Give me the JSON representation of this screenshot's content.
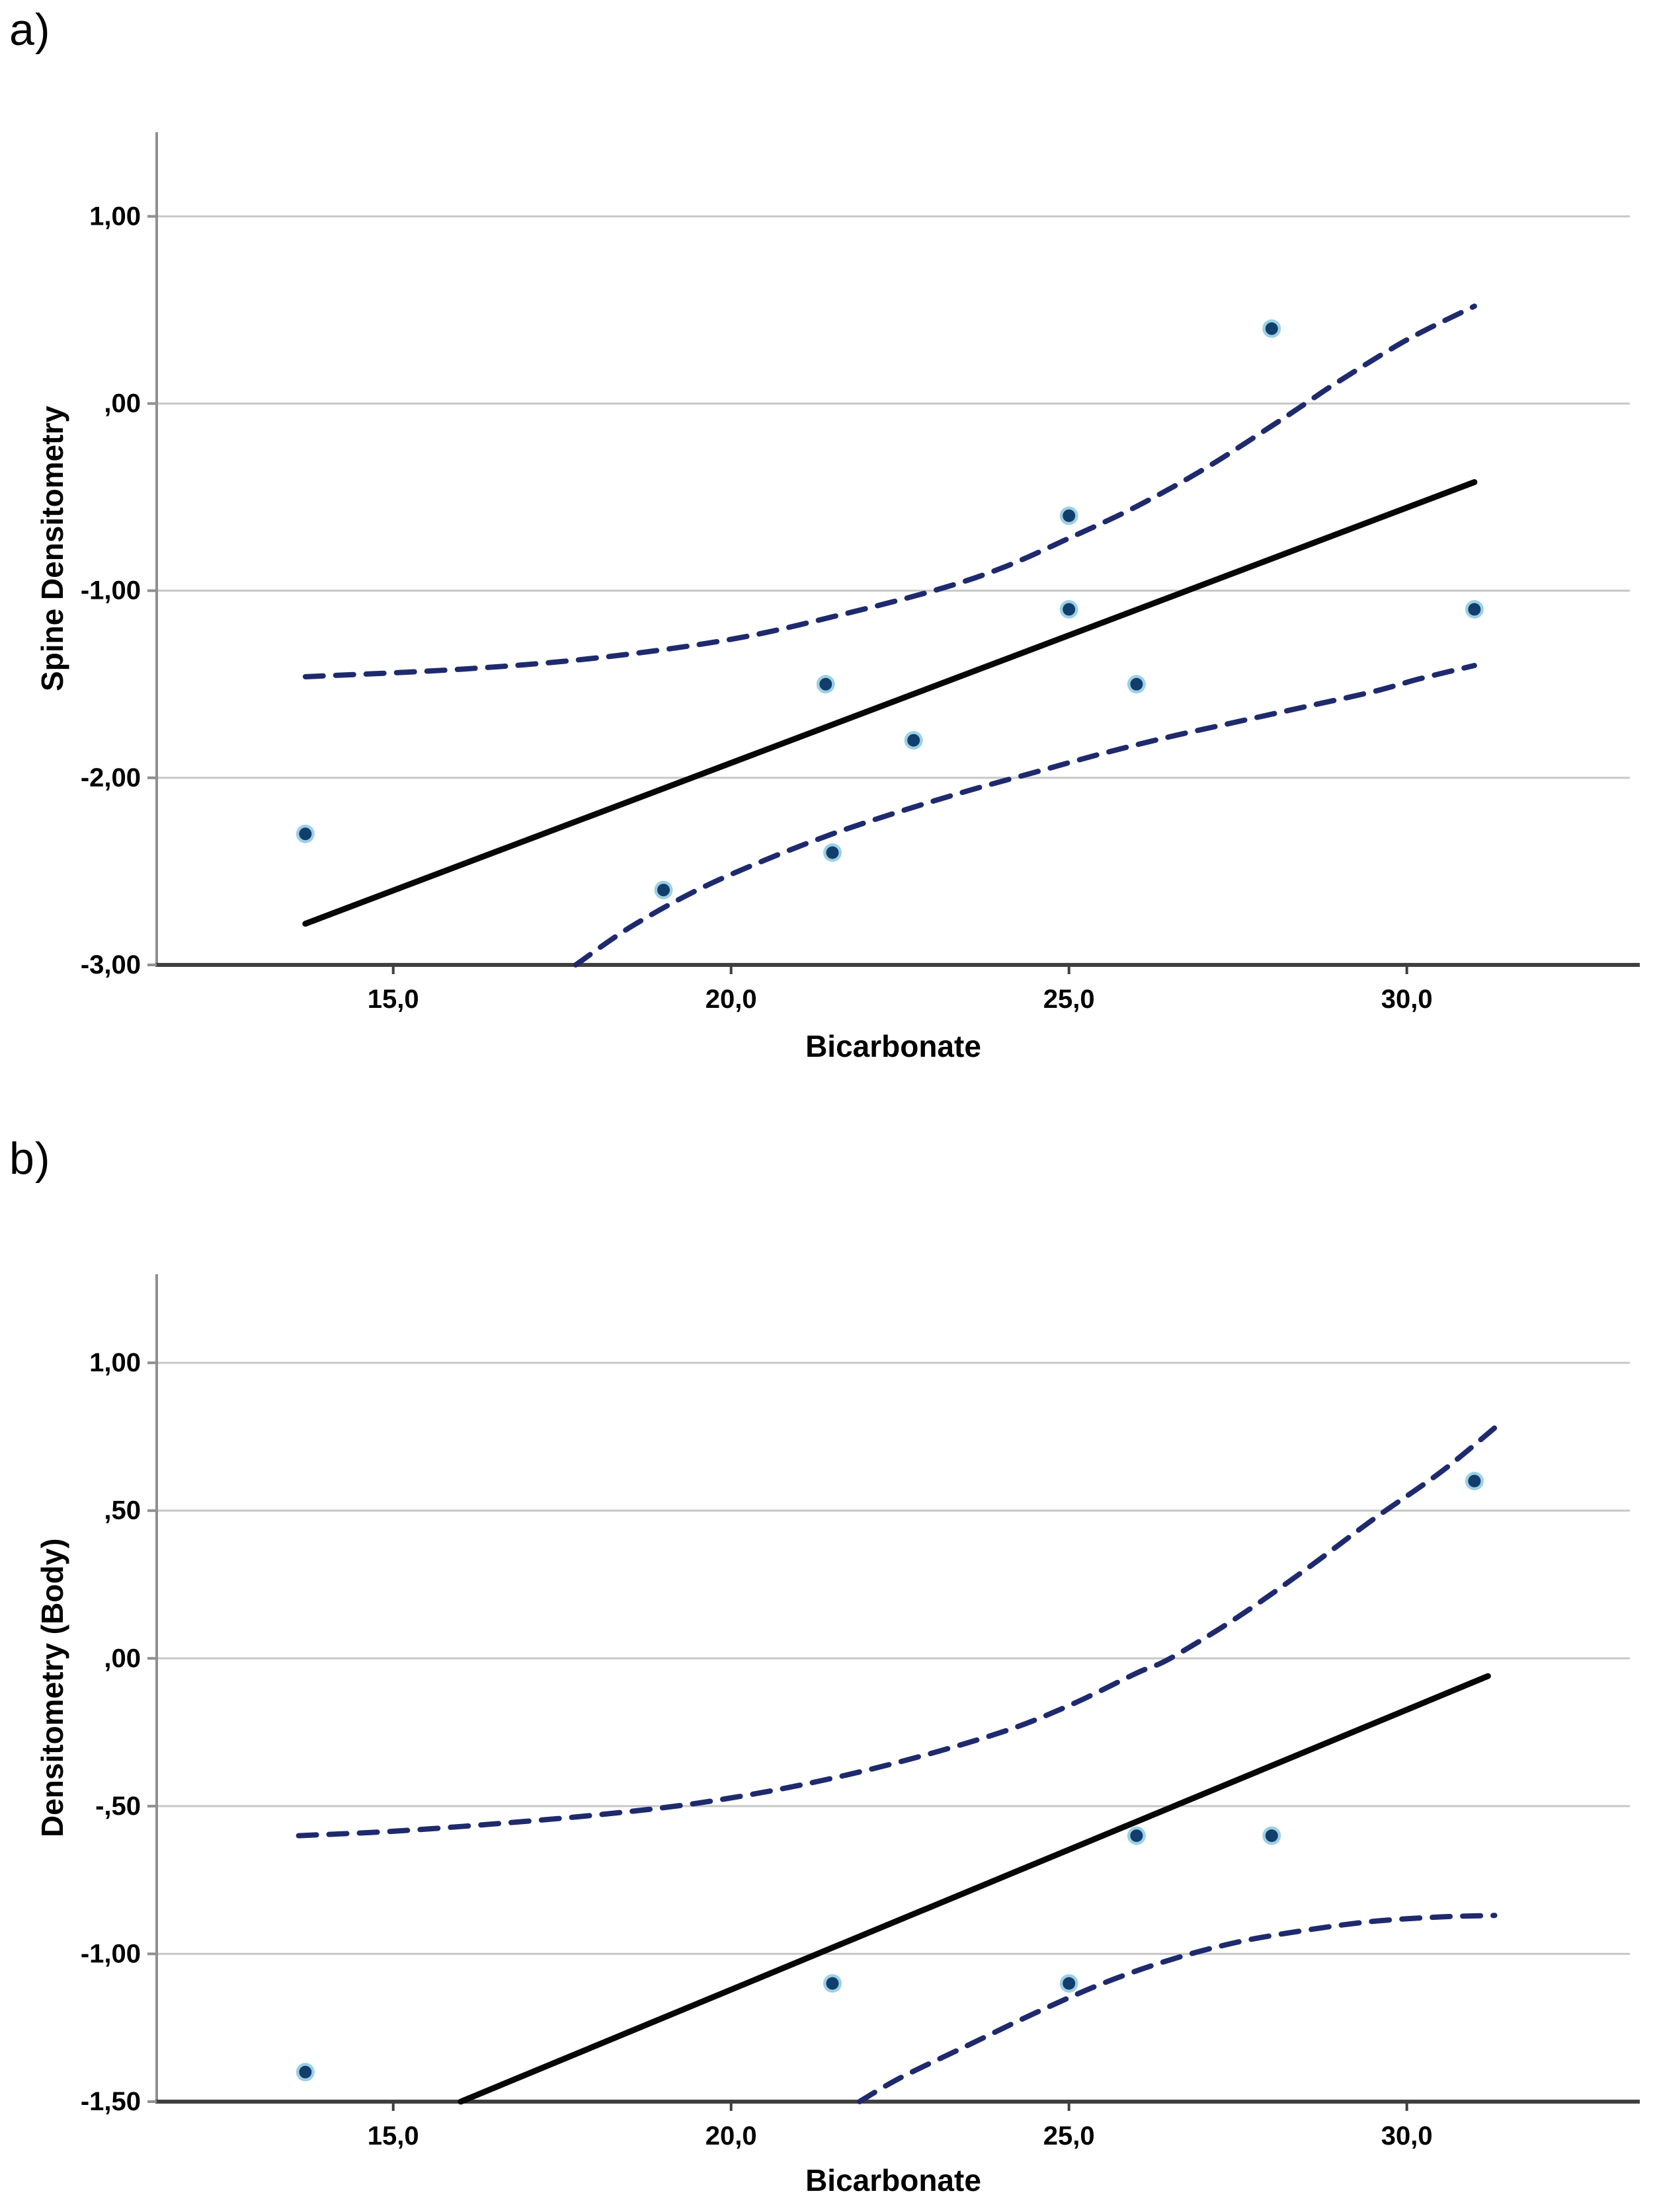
{
  "figure": {
    "background": "#ffffff",
    "text_color": "#000000"
  },
  "colors": {
    "grid_line": "#c7c7c7",
    "y_axis_line": "#8f8f8f",
    "x_axis_line": "#3f3f3f",
    "regression_line": "#070707",
    "ci_dashed_line": "#1e2a6d",
    "point_core": "#123e6b",
    "point_halo": "#4aa9cf"
  },
  "chart_data": [
    {
      "type": "scatter",
      "panel_label": "a)",
      "title": "",
      "xlabel": "Bicarbonate",
      "ylabel": "Spine Densitometry",
      "xlim": [
        11.5,
        33.3
      ],
      "ylim": [
        -3.0,
        1.45
      ],
      "grid": "horizontal",
      "legend": "none",
      "x_ticks": [
        15.0,
        20.0,
        25.0,
        30.0
      ],
      "x_tick_labels": [
        "15,0",
        "20,0",
        "25,0",
        "30,0"
      ],
      "y_ticks": [
        1.0,
        0.0,
        -1.0,
        -2.0,
        -3.0
      ],
      "y_tick_labels": [
        "1,00",
        ",00",
        "-1,00",
        "-2,00",
        "-3,00"
      ],
      "points": [
        [
          13.7,
          -2.3
        ],
        [
          19.0,
          -2.6
        ],
        [
          21.4,
          -1.5
        ],
        [
          21.5,
          -2.4
        ],
        [
          22.7,
          -1.8
        ],
        [
          25.0,
          -0.6
        ],
        [
          25.0,
          -1.1
        ],
        [
          26.0,
          -1.5
        ],
        [
          28.0,
          0.4
        ],
        [
          31.0,
          -1.1
        ]
      ],
      "regression_line": [
        [
          13.7,
          -2.78
        ],
        [
          31.0,
          -0.42
        ]
      ],
      "ci_upper": [
        [
          13.7,
          -1.46
        ],
        [
          16.0,
          -1.42
        ],
        [
          18.0,
          -1.36
        ],
        [
          20.0,
          -1.26
        ],
        [
          21.5,
          -1.14
        ],
        [
          23.0,
          -1.0
        ],
        [
          24.0,
          -0.88
        ],
        [
          25.0,
          -0.72
        ],
        [
          26.0,
          -0.55
        ],
        [
          27.0,
          -0.35
        ],
        [
          28.0,
          -0.12
        ],
        [
          28.5,
          0.0
        ],
        [
          29.0,
          0.12
        ],
        [
          30.0,
          0.34
        ],
        [
          31.0,
          0.52
        ]
      ],
      "ci_lower": [
        [
          17.7,
          -3.0
        ],
        [
          18.5,
          -2.8
        ],
        [
          19.5,
          -2.6
        ],
        [
          20.5,
          -2.44
        ],
        [
          21.5,
          -2.3
        ],
        [
          22.5,
          -2.18
        ],
        [
          23.5,
          -2.07
        ],
        [
          24.5,
          -1.97
        ],
        [
          25.5,
          -1.87
        ],
        [
          26.5,
          -1.78
        ],
        [
          27.5,
          -1.7
        ],
        [
          28.5,
          -1.62
        ],
        [
          29.5,
          -1.54
        ],
        [
          30.2,
          -1.47
        ],
        [
          31.0,
          -1.4
        ]
      ]
    },
    {
      "type": "scatter",
      "panel_label": "b)",
      "title": "",
      "xlabel": "Bicarbonate",
      "ylabel": "Densitometry (Body)",
      "xlim": [
        11.5,
        33.3
      ],
      "ylim": [
        -1.5,
        1.3
      ],
      "grid": "horizontal",
      "legend": "none",
      "x_ticks": [
        15.0,
        20.0,
        25.0,
        30.0
      ],
      "x_tick_labels": [
        "15,0",
        "20,0",
        "25,0",
        "30,0"
      ],
      "y_ticks": [
        1.0,
        0.5,
        0.0,
        -0.5,
        -1.0,
        -1.5
      ],
      "y_tick_labels": [
        "1,00",
        ",50",
        ",00",
        "-,50",
        "-1,00",
        "-1,50"
      ],
      "points": [
        [
          13.7,
          -1.4
        ],
        [
          21.5,
          -1.1
        ],
        [
          25.0,
          -1.1
        ],
        [
          26.0,
          -0.6
        ],
        [
          28.0,
          -0.6
        ],
        [
          31.0,
          0.6
        ]
      ],
      "regression_line": [
        [
          16.0,
          -1.5
        ],
        [
          31.2,
          -0.06
        ]
      ],
      "ci_upper": [
        [
          13.6,
          -0.6
        ],
        [
          15.0,
          -0.585
        ],
        [
          16.5,
          -0.56
        ],
        [
          18.0,
          -0.53
        ],
        [
          19.5,
          -0.49
        ],
        [
          21.0,
          -0.43
        ],
        [
          22.5,
          -0.35
        ],
        [
          24.0,
          -0.25
        ],
        [
          25.0,
          -0.16
        ],
        [
          26.0,
          -0.05
        ],
        [
          26.5,
          0.0
        ],
        [
          27.5,
          0.14
        ],
        [
          28.5,
          0.3
        ],
        [
          29.5,
          0.47
        ],
        [
          30.5,
          0.63
        ],
        [
          31.3,
          0.78
        ]
      ],
      "ci_lower": [
        [
          21.9,
          -1.5
        ],
        [
          22.5,
          -1.42
        ],
        [
          23.5,
          -1.31
        ],
        [
          24.5,
          -1.2
        ],
        [
          25.5,
          -1.1
        ],
        [
          26.5,
          -1.02
        ],
        [
          27.5,
          -0.96
        ],
        [
          28.5,
          -0.92
        ],
        [
          29.5,
          -0.89
        ],
        [
          30.5,
          -0.875
        ],
        [
          31.3,
          -0.87
        ]
      ]
    }
  ]
}
